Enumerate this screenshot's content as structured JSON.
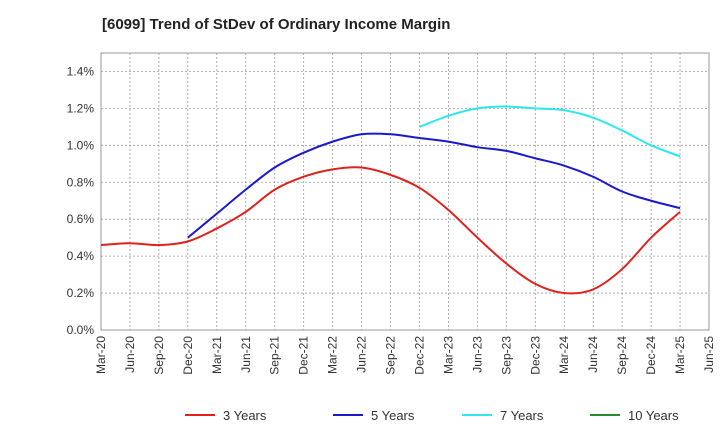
{
  "chart_data": {
    "type": "line",
    "title": "[6099]  Trend of StDev of Ordinary Income Margin",
    "xlabel": "",
    "ylabel": "",
    "x_ticks": [
      "Mar-20",
      "Jun-20",
      "Sep-20",
      "Dec-20",
      "Mar-21",
      "Jun-21",
      "Sep-21",
      "Dec-21",
      "Mar-22",
      "Jun-22",
      "Sep-22",
      "Dec-22",
      "Mar-23",
      "Jun-23",
      "Sep-23",
      "Dec-23",
      "Mar-24",
      "Jun-24",
      "Sep-24",
      "Dec-24",
      "Mar-25",
      "Jun-25"
    ],
    "y_ticks": [
      "0.0%",
      "0.2%",
      "0.4%",
      "0.6%",
      "0.8%",
      "1.0%",
      "1.2%",
      "1.4%"
    ],
    "ylim": [
      0,
      1.5
    ],
    "grid": true,
    "legend_position": "bottom",
    "series": [
      {
        "name": "3 Years",
        "color": "#e0201b",
        "x": [
          "Mar-20",
          "Jun-20",
          "Sep-20",
          "Dec-20",
          "Mar-21",
          "Jun-21",
          "Sep-21",
          "Dec-21",
          "Mar-22",
          "Jun-22",
          "Sep-22",
          "Dec-22",
          "Mar-23",
          "Jun-23",
          "Sep-23",
          "Dec-23",
          "Mar-24",
          "Jun-24",
          "Sep-24",
          "Dec-24",
          "Mar-25"
        ],
        "values": [
          0.46,
          0.47,
          0.46,
          0.48,
          0.55,
          0.64,
          0.76,
          0.83,
          0.87,
          0.88,
          0.84,
          0.77,
          0.65,
          0.5,
          0.36,
          0.25,
          0.2,
          0.22,
          0.33,
          0.5,
          0.64
        ]
      },
      {
        "name": "5 Years",
        "color": "#1a1acc",
        "x": [
          "Dec-20",
          "Mar-21",
          "Jun-21",
          "Sep-21",
          "Dec-21",
          "Mar-22",
          "Jun-22",
          "Sep-22",
          "Dec-22",
          "Mar-23",
          "Jun-23",
          "Sep-23",
          "Dec-23",
          "Mar-24",
          "Jun-24",
          "Sep-24",
          "Dec-24",
          "Mar-25"
        ],
        "values": [
          0.5,
          0.63,
          0.76,
          0.88,
          0.96,
          1.02,
          1.06,
          1.06,
          1.04,
          1.02,
          0.99,
          0.97,
          0.93,
          0.89,
          0.83,
          0.75,
          0.7,
          0.66
        ]
      },
      {
        "name": "7 Years",
        "color": "#2ee6f0",
        "x": [
          "Dec-22",
          "Mar-23",
          "Jun-23",
          "Sep-23",
          "Dec-23",
          "Mar-24",
          "Jun-24",
          "Sep-24",
          "Dec-24",
          "Mar-25"
        ],
        "values": [
          1.1,
          1.16,
          1.2,
          1.21,
          1.2,
          1.19,
          1.15,
          1.08,
          1.0,
          0.94
        ]
      },
      {
        "name": "10 Years",
        "color": "#2a8a2a",
        "x": [],
        "values": []
      }
    ]
  }
}
